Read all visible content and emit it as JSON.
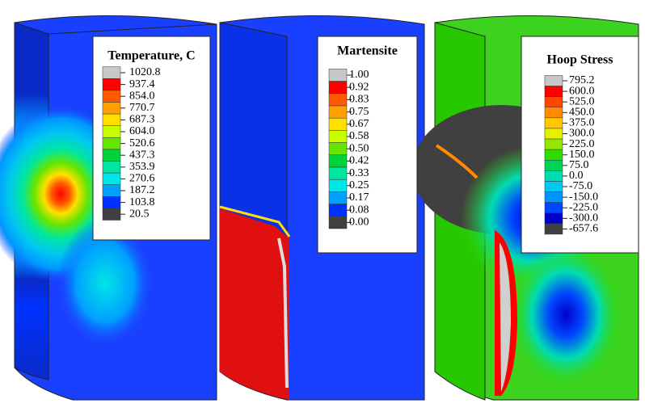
{
  "panels": [
    {
      "title": "Temperature, C",
      "labels": [
        "1020.8",
        "937.4",
        "854.0",
        "770.7",
        "687.3",
        "604.0",
        "520.6",
        "437.3",
        "353.9",
        "270.6",
        "187.2",
        "103.8",
        "20.5"
      ],
      "colors": [
        "#c8c8c8",
        "#ff0000",
        "#ff5a00",
        "#ffa000",
        "#ffe000",
        "#c8ff00",
        "#64e600",
        "#00d23c",
        "#00e6a0",
        "#00e6e6",
        "#00a0ff",
        "#0032ff",
        "#404040"
      ]
    },
    {
      "title": "Martensite",
      "labels": [
        "1.00",
        "0.92",
        "0.83",
        "0.75",
        "0.67",
        "0.58",
        "0.50",
        "0.42",
        "0.33",
        "0.25",
        "0.17",
        "0.08",
        "0.00"
      ],
      "colors": [
        "#c8c8c8",
        "#ff0000",
        "#ff5a00",
        "#ffa000",
        "#ffe000",
        "#c8ff00",
        "#64e600",
        "#00d23c",
        "#00e6a0",
        "#00e6e6",
        "#00a0ff",
        "#0032ff",
        "#404040"
      ]
    },
    {
      "title": "Hoop Stress",
      "labels": [
        "795.2",
        "600.0",
        "525.0",
        "450.0",
        "375.0",
        "300.0",
        "225.0",
        "150.0",
        "75.0",
        "0.0",
        "-75.0",
        "-150.0",
        "-225.0",
        "-300.0",
        "-657.6"
      ],
      "colors": [
        "#c8c8c8",
        "#ff0000",
        "#ff4600",
        "#ff8c00",
        "#ffc800",
        "#e6f000",
        "#96e600",
        "#32dc00",
        "#00d25a",
        "#00dcb4",
        "#00c8f0",
        "#0096ff",
        "#0046ff",
        "#0000c8",
        "#404040"
      ]
    }
  ]
}
